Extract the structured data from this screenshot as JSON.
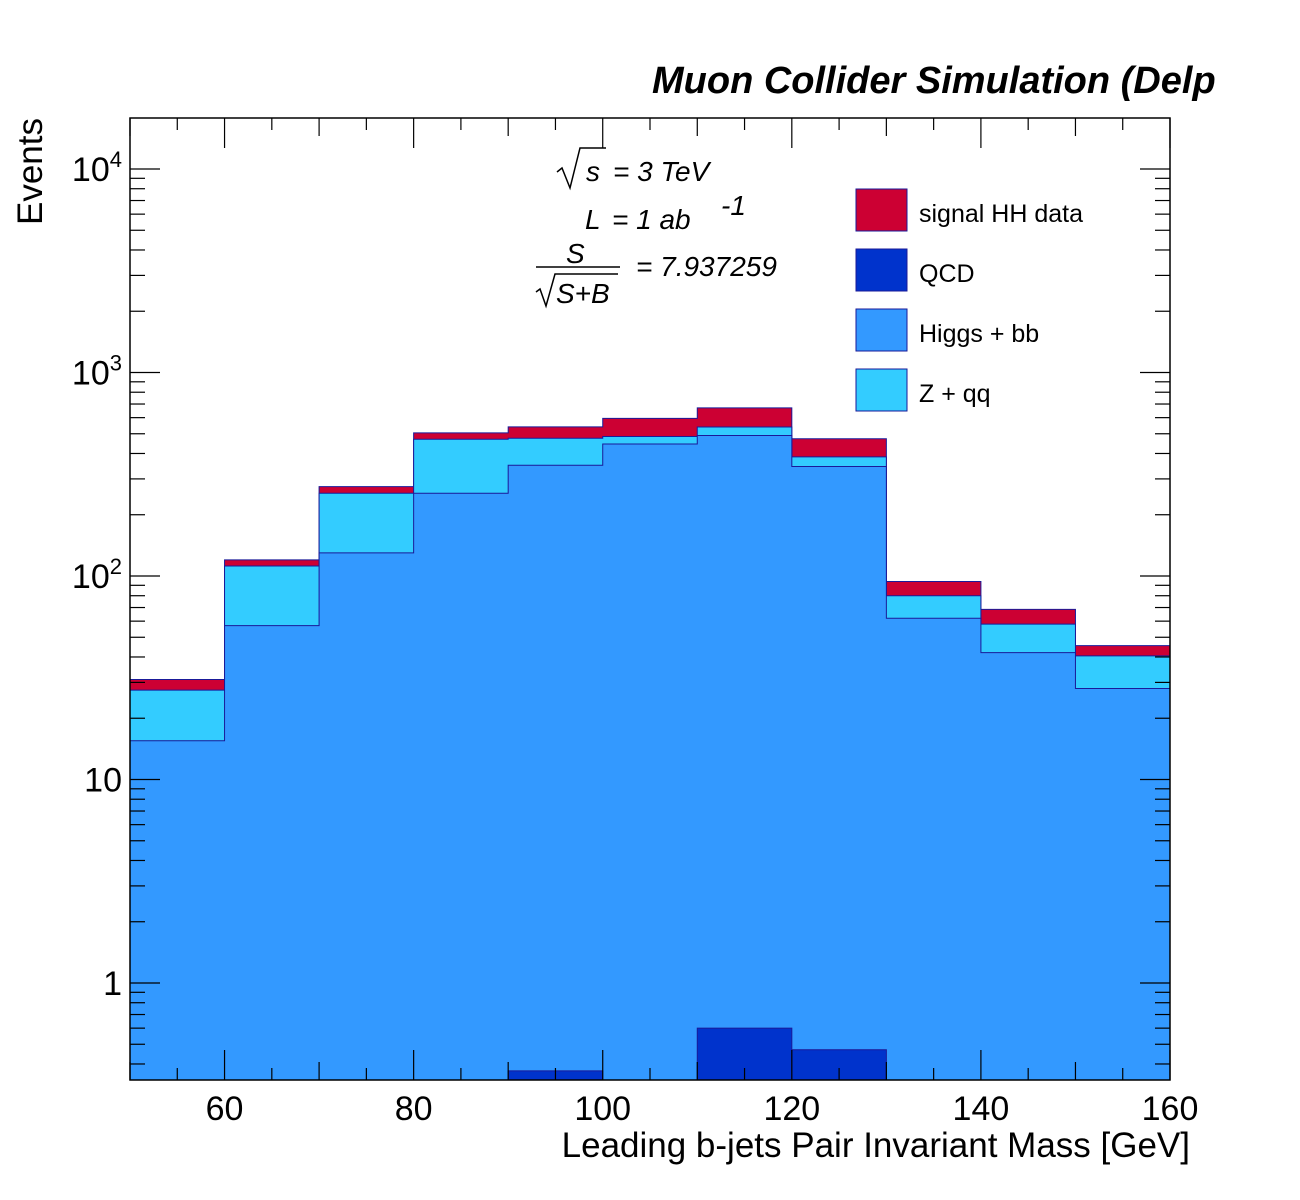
{
  "chart_data": {
    "type": "bar",
    "stacked": true,
    "title": "Muon Collider Simulation (Delp",
    "xlabel": "Leading b-jets Pair Invariant Mass [GeV]",
    "ylabel": "Events",
    "yscale": "log",
    "xlim": [
      50,
      160
    ],
    "ylim": [
      0.33,
      18000
    ],
    "x_tick_labels": [
      "60",
      "80",
      "100",
      "120",
      "140",
      "160"
    ],
    "y_tick_labels": [
      "1",
      "10",
      "10^2",
      "10^3",
      "10^4"
    ],
    "bin_edges": [
      50,
      60,
      70,
      80,
      90,
      100,
      110,
      120,
      130,
      140,
      150,
      160
    ],
    "series": [
      {
        "name": "Higgs + bb",
        "color": "#3399ff",
        "values": [
          15.5,
          57,
          130,
          255,
          350,
          445,
          490,
          345,
          62,
          42,
          28
        ]
      },
      {
        "name": "Z + qq",
        "color": "#33ccff",
        "values": [
          12,
          55,
          125,
          215,
          125,
          40,
          50,
          40,
          18,
          16,
          12.5
        ]
      },
      {
        "name": "QCD",
        "color": "#0033cc",
        "values": [
          0,
          0,
          0,
          0,
          0.37,
          0,
          0.6,
          0.47,
          0,
          0,
          0
        ]
      },
      {
        "name": "signal HH data",
        "color": "#cc0033",
        "values": [
          3.5,
          8,
          20,
          35,
          65,
          110,
          130,
          87,
          14,
          10.5,
          5
        ]
      }
    ],
    "legend_order": [
      "signal HH data",
      "QCD",
      "Higgs + bb",
      "Z + qq"
    ],
    "legend_position": "top-right",
    "annotations": {
      "sqrt_s": "s",
      "energy": "= 3 TeV",
      "lumi_label": "L",
      "lumi_value": "=  1 ab",
      "lumi_exp": "-1",
      "sig_num": "S",
      "sig_den": "S+B",
      "sig_value": "=  7.937259"
    },
    "grid": false
  }
}
